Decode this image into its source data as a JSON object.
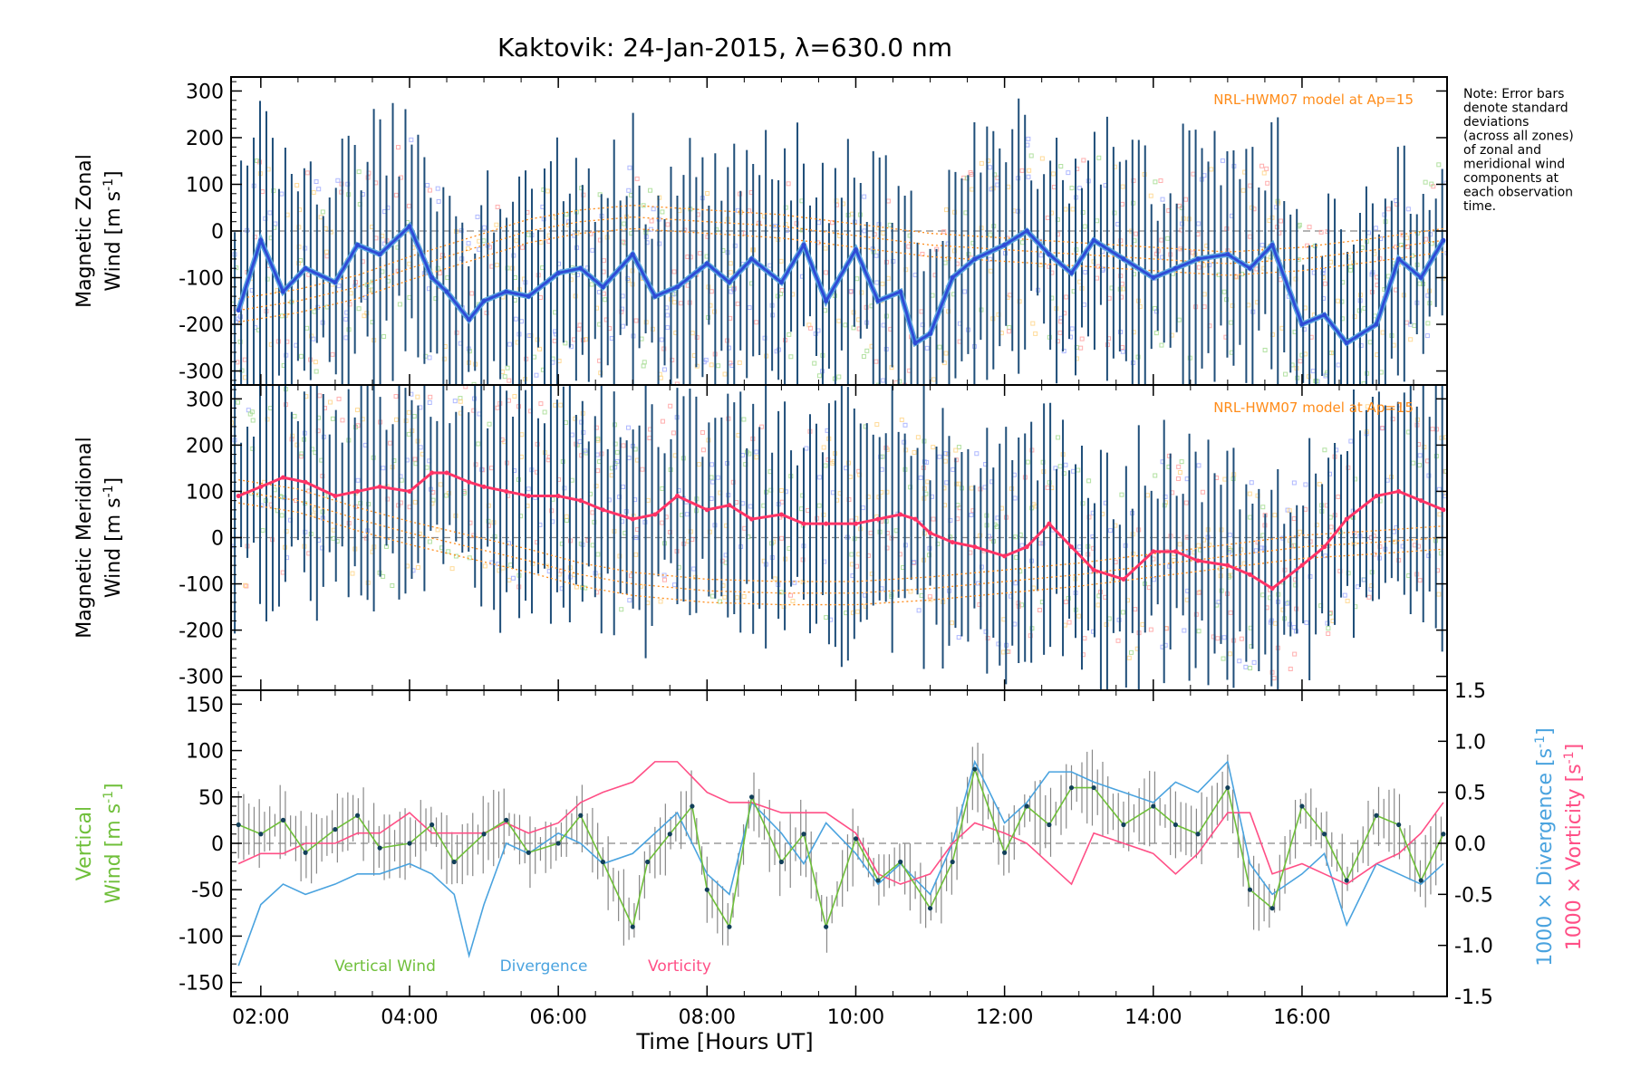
{
  "title": "Kaktovik: 24-Jan-2015, λ=630.0 nm",
  "note": [
    "Note: Error bars",
    "denote standard",
    "deviations",
    "(across all zones)",
    "of zonal and",
    "meridional wind",
    "components at",
    "each observation",
    "time."
  ],
  "model_label": "NRL-HWM07 model at Ap=15",
  "colors": {
    "errorbar": "#1f4e79",
    "zonal": "#2e4bd6",
    "zonal_light": "#5aa7e0",
    "meridional": "#ff3366",
    "model": "#ff8c1a",
    "vertical": "#6fbf3a",
    "divergence": "#4aa3df",
    "vorticity": "#ff4f86",
    "point": "#12405a",
    "grey": "#888888",
    "scatter": [
      "#9fd98a",
      "#ff9b9b",
      "#ffd27f",
      "#9aa6ff"
    ]
  },
  "chart_data": [
    {
      "type": "line",
      "name": "zonal",
      "ylabel_line1": "Magnetic Zonal",
      "ylabel_line2": "Wind [m s",
      "ylabel_sup": "-1",
      "ylabel_end": "]",
      "ylim": [
        -330,
        330
      ],
      "yticks": [
        "300",
        "200",
        "100",
        "0",
        "-100",
        "-200",
        "-300"
      ],
      "ytick_values": [
        300,
        200,
        100,
        0,
        -100,
        -200,
        -300
      ],
      "x": [
        1.7,
        2.0,
        2.3,
        2.6,
        3.0,
        3.3,
        3.6,
        4.0,
        4.3,
        4.5,
        4.8,
        5.0,
        5.3,
        5.6,
        6.0,
        6.3,
        6.6,
        7.0,
        7.3,
        7.6,
        8.0,
        8.3,
        8.6,
        9.0,
        9.3,
        9.6,
        10.0,
        10.3,
        10.6,
        10.8,
        11.0,
        11.3,
        11.6,
        12.0,
        12.3,
        12.6,
        12.9,
        13.2,
        13.6,
        14.0,
        14.3,
        14.6,
        15.0,
        15.3,
        15.6,
        16.0,
        16.3,
        16.6,
        17.0,
        17.3,
        17.6,
        17.9
      ],
      "values": [
        -170,
        -20,
        -130,
        -80,
        -110,
        -30,
        -50,
        10,
        -100,
        -130,
        -190,
        -150,
        -130,
        -140,
        -90,
        -80,
        -120,
        -50,
        -140,
        -120,
        -70,
        -110,
        -60,
        -110,
        -30,
        -150,
        -40,
        -150,
        -130,
        -240,
        -220,
        -100,
        -60,
        -30,
        0,
        -50,
        -90,
        -20,
        -60,
        -100,
        -80,
        -60,
        -50,
        -80,
        -30,
        -200,
        -180,
        -240,
        -200,
        -60,
        -100,
        -20
      ],
      "model": [
        -170,
        -150,
        -120,
        -80,
        -40,
        0,
        20,
        30,
        20,
        10,
        -10,
        -30,
        -40,
        -50,
        -60,
        -70,
        -60,
        -40,
        -20
      ],
      "model_x": [
        1.7,
        2.5,
        3.3,
        4.0,
        4.8,
        5.6,
        6.3,
        7.0,
        8.0,
        9.0,
        10.0,
        11.0,
        12.0,
        13.0,
        14.0,
        15.0,
        16.0,
        17.0,
        17.9
      ]
    },
    {
      "type": "line",
      "name": "meridional",
      "ylabel_line1": "Magnetic Meridional",
      "ylabel_line2": "Wind [m s",
      "ylabel_sup": "-1",
      "ylabel_end": "]",
      "ylim": [
        -330,
        330
      ],
      "yticks": [
        "300",
        "200",
        "100",
        "0",
        "-100",
        "-200",
        "-300"
      ],
      "ytick_values": [
        300,
        200,
        100,
        0,
        -100,
        -200,
        -300
      ],
      "x": [
        1.7,
        2.0,
        2.3,
        2.6,
        3.0,
        3.3,
        3.6,
        4.0,
        4.3,
        4.5,
        4.8,
        5.0,
        5.3,
        5.6,
        6.0,
        6.3,
        6.6,
        7.0,
        7.3,
        7.6,
        8.0,
        8.3,
        8.6,
        9.0,
        9.3,
        9.6,
        10.0,
        10.3,
        10.6,
        10.8,
        11.0,
        11.3,
        11.6,
        12.0,
        12.3,
        12.6,
        12.9,
        13.2,
        13.6,
        14.0,
        14.3,
        14.6,
        15.0,
        15.3,
        15.6,
        16.0,
        16.3,
        16.6,
        17.0,
        17.3,
        17.6,
        17.9
      ],
      "values": [
        90,
        110,
        130,
        120,
        90,
        100,
        110,
        100,
        140,
        140,
        120,
        110,
        100,
        90,
        90,
        80,
        60,
        40,
        50,
        90,
        60,
        70,
        40,
        50,
        30,
        30,
        30,
        40,
        50,
        40,
        10,
        -10,
        -20,
        -40,
        -20,
        30,
        -20,
        -70,
        -90,
        -30,
        -30,
        -50,
        -60,
        -80,
        -110,
        -60,
        -20,
        40,
        90,
        100,
        80,
        60
      ],
      "model": [
        100,
        80,
        40,
        10,
        -20,
        -50,
        -80,
        -100,
        -115,
        -120,
        -120,
        -110,
        -95,
        -80,
        -60,
        -40,
        -20,
        -10,
        0
      ],
      "model_x": [
        1.7,
        2.5,
        3.3,
        4.0,
        4.8,
        5.6,
        6.3,
        7.0,
        8.0,
        9.0,
        10.0,
        11.0,
        12.0,
        13.0,
        14.0,
        15.0,
        16.0,
        17.0,
        17.9
      ]
    },
    {
      "type": "line",
      "name": "vertical",
      "ylabel_line1": "Vertical",
      "ylabel_line2": "Wind [m s",
      "ylabel_sup": "-1",
      "ylabel_end": "]",
      "ylim": [
        -165,
        165
      ],
      "yticks": [
        "150",
        "100",
        "50",
        "0",
        "-50",
        "-100",
        "-150"
      ],
      "ytick_values": [
        150,
        100,
        50,
        0,
        -50,
        -100,
        -150
      ],
      "right_ylim": [
        -1.5,
        1.5
      ],
      "right_yticks": [
        "1.5",
        "1.0",
        "0.5",
        "0.0",
        "-0.5",
        "-1.0",
        "-1.5"
      ],
      "right_ytick_values": [
        1.5,
        1.0,
        0.5,
        0.0,
        -0.5,
        -1.0,
        -1.5
      ],
      "right_label_div": "1000 × Divergence [s",
      "right_label_vort": "1000 × Vorticity [s",
      "right_label_sup": "-1",
      "right_label_end": "]",
      "series": [
        {
          "name": "Vertical Wind",
          "x": [
            1.7,
            2.0,
            2.3,
            2.6,
            3.0,
            3.3,
            3.6,
            4.0,
            4.3,
            4.6,
            5.0,
            5.3,
            5.6,
            6.0,
            6.3,
            6.6,
            7.0,
            7.2,
            7.5,
            7.8,
            8.0,
            8.3,
            8.6,
            9.0,
            9.3,
            9.6,
            10.0,
            10.3,
            10.6,
            11.0,
            11.3,
            11.6,
            12.0,
            12.3,
            12.6,
            12.9,
            13.2,
            13.6,
            14.0,
            14.3,
            14.6,
            15.0,
            15.3,
            15.6,
            16.0,
            16.3,
            16.6,
            17.0,
            17.3,
            17.6,
            17.9
          ],
          "values": [
            20,
            10,
            25,
            -10,
            15,
            30,
            -5,
            0,
            20,
            -20,
            10,
            25,
            -10,
            0,
            30,
            -20,
            -90,
            -20,
            10,
            40,
            -50,
            -90,
            50,
            -20,
            10,
            -90,
            5,
            -40,
            -20,
            -70,
            -20,
            80,
            -10,
            40,
            20,
            60,
            60,
            20,
            40,
            20,
            10,
            60,
            -50,
            -70,
            40,
            10,
            -40,
            30,
            20,
            -40,
            10
          ]
        },
        {
          "name": "Divergence",
          "x": [
            1.7,
            2.0,
            2.3,
            2.6,
            3.0,
            3.3,
            3.6,
            4.0,
            4.3,
            4.6,
            4.8,
            5.0,
            5.3,
            5.6,
            6.0,
            6.3,
            6.6,
            7.0,
            7.3,
            7.6,
            8.0,
            8.3,
            8.6,
            9.0,
            9.3,
            9.6,
            10.0,
            10.3,
            10.6,
            11.0,
            11.3,
            11.6,
            12.0,
            12.3,
            12.6,
            12.9,
            13.2,
            13.6,
            14.0,
            14.3,
            14.6,
            15.0,
            15.3,
            15.6,
            16.0,
            16.3,
            16.6,
            17.0,
            17.3,
            17.6,
            17.9
          ],
          "values": [
            -1.2,
            -0.6,
            -0.4,
            -0.5,
            -0.4,
            -0.3,
            -0.3,
            -0.2,
            -0.3,
            -0.5,
            -1.1,
            -0.6,
            0.0,
            -0.1,
            0.1,
            0.0,
            -0.2,
            -0.1,
            0.1,
            0.3,
            -0.3,
            -0.5,
            0.4,
            0.1,
            -0.2,
            0.2,
            -0.1,
            -0.4,
            -0.2,
            -0.5,
            0.0,
            0.8,
            0.2,
            0.4,
            0.7,
            0.7,
            0.6,
            0.5,
            0.4,
            0.6,
            0.5,
            0.8,
            -0.2,
            -0.5,
            -0.3,
            -0.1,
            -0.8,
            -0.2,
            -0.3,
            -0.4,
            -0.2
          ]
        },
        {
          "name": "Vorticity",
          "x": [
            1.7,
            2.0,
            2.3,
            2.6,
            3.0,
            3.3,
            3.6,
            4.0,
            4.3,
            4.6,
            5.0,
            5.3,
            5.6,
            6.0,
            6.3,
            6.6,
            7.0,
            7.3,
            7.6,
            8.0,
            8.3,
            8.6,
            9.0,
            9.3,
            9.6,
            10.0,
            10.3,
            10.6,
            11.0,
            11.3,
            11.6,
            12.0,
            12.3,
            12.6,
            12.9,
            13.2,
            13.6,
            14.0,
            14.3,
            14.6,
            15.0,
            15.3,
            15.6,
            16.0,
            16.3,
            16.6,
            17.0,
            17.3,
            17.6,
            17.9
          ],
          "values": [
            -0.2,
            -0.1,
            -0.1,
            0.0,
            0.0,
            0.1,
            0.1,
            0.3,
            0.1,
            0.1,
            0.1,
            0.2,
            0.1,
            0.2,
            0.4,
            0.5,
            0.6,
            0.8,
            0.8,
            0.5,
            0.4,
            0.4,
            0.3,
            0.3,
            0.3,
            0.1,
            -0.3,
            -0.4,
            -0.3,
            0.0,
            0.2,
            0.1,
            0.0,
            -0.2,
            -0.4,
            0.1,
            0.0,
            -0.1,
            -0.3,
            -0.1,
            0.3,
            0.3,
            -0.3,
            -0.2,
            -0.3,
            -0.4,
            -0.2,
            -0.1,
            0.1,
            0.4
          ]
        }
      ],
      "legend": [
        "Vertical Wind",
        "Divergence",
        "Vorticity"
      ]
    }
  ],
  "xaxis": {
    "label": "Time [Hours UT]",
    "xlim": [
      1.6,
      17.95
    ],
    "ticks": [
      "02:00",
      "04:00",
      "06:00",
      "08:00",
      "10:00",
      "12:00",
      "14:00",
      "16:00"
    ],
    "tick_values": [
      2,
      4,
      6,
      8,
      10,
      12,
      14,
      16
    ]
  }
}
